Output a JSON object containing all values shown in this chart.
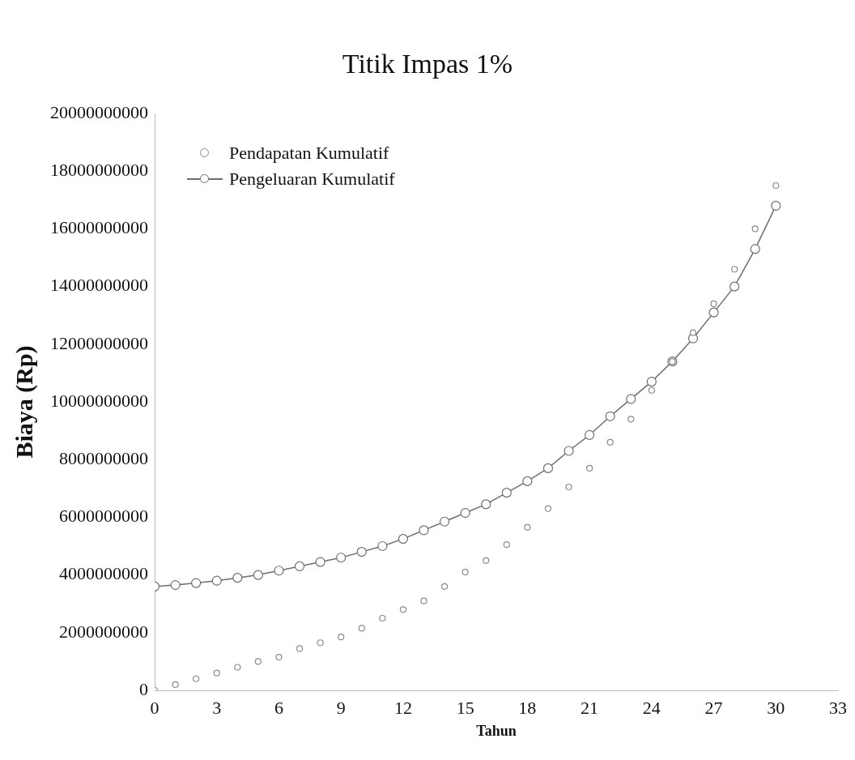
{
  "chart_data": {
    "type": "line",
    "title": "Titik Impas 1%",
    "xlabel": "Tahun",
    "ylabel": "Biaya (Rp)",
    "x": [
      0,
      1,
      2,
      3,
      4,
      5,
      6,
      7,
      8,
      9,
      10,
      11,
      12,
      13,
      14,
      15,
      16,
      17,
      18,
      19,
      20,
      21,
      22,
      23,
      24,
      25,
      26,
      27,
      28,
      29,
      30
    ],
    "series": [
      {
        "name": "Pendapatan Kumulatif",
        "type": "scatter",
        "color": "#8a8a8a",
        "values": [
          0,
          200000000,
          400000000,
          600000000,
          800000000,
          1000000000,
          1150000000,
          1450000000,
          1650000000,
          1850000000,
          2150000000,
          2500000000,
          2800000000,
          3100000000,
          3600000000,
          4100000000,
          4500000000,
          5050000000,
          5650000000,
          6300000000,
          7050000000,
          7700000000,
          8600000000,
          9400000000,
          10400000000,
          11400000000,
          12400000000,
          13400000000,
          14600000000,
          16000000000,
          17500000000
        ]
      },
      {
        "name": "Pengeluaran Kumulatif",
        "type": "line",
        "color": "#6e6e6e",
        "values": [
          3600000000,
          3650000000,
          3720000000,
          3800000000,
          3900000000,
          4000000000,
          4150000000,
          4300000000,
          4450000000,
          4600000000,
          4800000000,
          5000000000,
          5250000000,
          5550000000,
          5850000000,
          6150000000,
          6450000000,
          6850000000,
          7250000000,
          7700000000,
          8300000000,
          8850000000,
          9500000000,
          10100000000,
          10700000000,
          11400000000,
          12200000000,
          13100000000,
          14000000000,
          15300000000,
          16800000000
        ]
      }
    ],
    "xlim": [
      0,
      33
    ],
    "xticks": [
      0,
      3,
      6,
      9,
      12,
      15,
      18,
      21,
      24,
      27,
      30,
      33
    ],
    "ylim": [
      0,
      20000000000
    ],
    "yticks": [
      0,
      2000000000,
      4000000000,
      6000000000,
      8000000000,
      10000000000,
      12000000000,
      14000000000,
      16000000000,
      18000000000,
      20000000000
    ],
    "grid": false,
    "legend": "top left",
    "marker": "circle",
    "line_style": "solid"
  }
}
